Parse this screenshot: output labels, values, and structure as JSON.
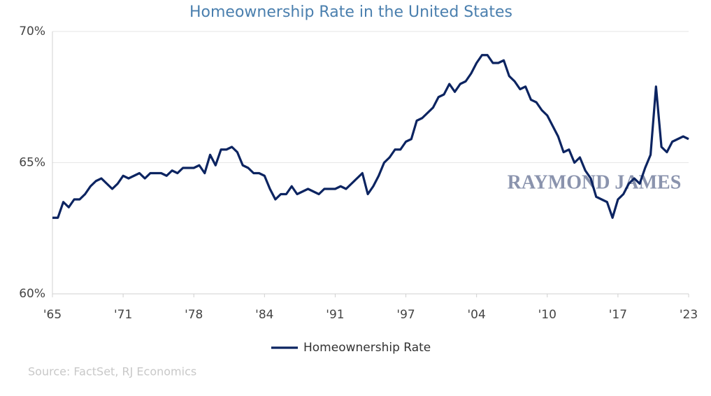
{
  "chart_data": {
    "type": "line",
    "title": "Homeownership Rate in the United States",
    "watermark": "RAYMOND JAMES",
    "source": "Source: FactSet, RJ Economics",
    "legend": "bottom",
    "grid": true,
    "xlim": [
      1965,
      2023.5
    ],
    "xticks": [
      {
        "value": 1965,
        "label": "'65"
      },
      {
        "value": 1971.5,
        "label": "'71"
      },
      {
        "value": 1978,
        "label": "'78"
      },
      {
        "value": 1984.5,
        "label": "'84"
      },
      {
        "value": 1991,
        "label": "'91"
      },
      {
        "value": 1997.5,
        "label": "'97"
      },
      {
        "value": 2004,
        "label": "'04"
      },
      {
        "value": 2010.5,
        "label": "'10"
      },
      {
        "value": 2017,
        "label": "'17"
      },
      {
        "value": 2023.5,
        "label": "'23"
      }
    ],
    "ylim": [
      60,
      70
    ],
    "yticks": [
      {
        "value": 60,
        "label": "60%"
      },
      {
        "value": 65,
        "label": "65%"
      },
      {
        "value": 70,
        "label": "70%"
      }
    ],
    "x": [
      1965,
      1965.5,
      1966,
      1966.5,
      1967,
      1967.5,
      1968,
      1968.5,
      1969,
      1969.5,
      1970,
      1970.5,
      1971,
      1971.5,
      1972,
      1972.5,
      1973,
      1973.5,
      1974,
      1974.5,
      1975,
      1975.5,
      1976,
      1976.5,
      1977,
      1977.5,
      1978,
      1978.5,
      1979,
      1979.5,
      1980,
      1980.5,
      1981,
      1981.5,
      1982,
      1982.5,
      1983,
      1983.5,
      1984,
      1984.5,
      1985,
      1985.5,
      1986,
      1986.5,
      1987,
      1987.5,
      1988,
      1988.5,
      1989,
      1989.5,
      1990,
      1990.5,
      1991,
      1991.5,
      1992,
      1992.5,
      1993,
      1993.5,
      1994,
      1994.5,
      1995,
      1995.5,
      1996,
      1996.5,
      1997,
      1997.5,
      1998,
      1998.5,
      1999,
      1999.5,
      2000,
      2000.5,
      2001,
      2001.5,
      2002,
      2002.5,
      2003,
      2003.5,
      2004,
      2004.5,
      2005,
      2005.5,
      2006,
      2006.5,
      2007,
      2007.5,
      2008,
      2008.5,
      2009,
      2009.5,
      2010,
      2010.5,
      2011,
      2011.5,
      2012,
      2012.5,
      2013,
      2013.5,
      2014,
      2014.5,
      2015,
      2015.5,
      2016,
      2016.5,
      2017,
      2017.5,
      2018,
      2018.5,
      2019,
      2019.5,
      2020,
      2020.5,
      2021,
      2021.5,
      2022,
      2022.5,
      2023,
      2023.5
    ],
    "series": [
      {
        "name": "Homeownership Rate",
        "color": "#0c2461",
        "values": [
          62.9,
          62.9,
          63.5,
          63.3,
          63.6,
          63.6,
          63.8,
          64.1,
          64.3,
          64.4,
          64.2,
          64.0,
          64.2,
          64.5,
          64.4,
          64.5,
          64.6,
          64.4,
          64.6,
          64.6,
          64.6,
          64.5,
          64.7,
          64.6,
          64.8,
          64.8,
          64.8,
          64.9,
          64.6,
          65.3,
          64.9,
          65.5,
          65.5,
          65.6,
          65.4,
          64.9,
          64.8,
          64.6,
          64.6,
          64.5,
          64.0,
          63.6,
          63.8,
          63.8,
          64.1,
          63.8,
          63.9,
          64.0,
          63.9,
          63.8,
          64.0,
          64.0,
          64.0,
          64.1,
          64.0,
          64.2,
          64.4,
          64.6,
          63.8,
          64.1,
          64.5,
          65.0,
          65.2,
          65.5,
          65.5,
          65.8,
          65.9,
          66.6,
          66.7,
          66.9,
          67.1,
          67.5,
          67.6,
          68.0,
          67.7,
          68.0,
          68.1,
          68.4,
          68.8,
          69.1,
          69.1,
          68.8,
          68.8,
          68.9,
          68.3,
          68.1,
          67.8,
          67.9,
          67.4,
          67.3,
          67.0,
          66.8,
          66.4,
          66.0,
          65.4,
          65.5,
          65.0,
          65.2,
          64.7,
          64.4,
          63.7,
          63.6,
          63.5,
          62.9,
          63.6,
          63.8,
          64.2,
          64.4,
          64.2,
          64.8,
          65.3,
          67.9,
          65.6,
          65.4,
          65.8,
          65.9,
          66.0,
          65.9
        ]
      }
    ]
  }
}
